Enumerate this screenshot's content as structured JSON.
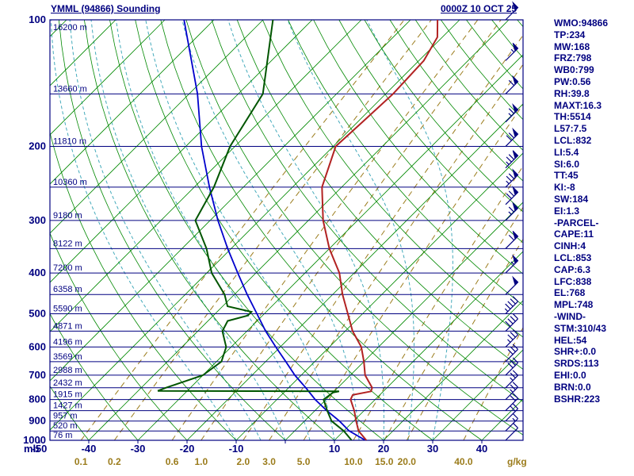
{
  "header": {
    "title": "YMML (94866) Sounding",
    "datetime": "0000Z 10 OCT 25"
  },
  "axes": {
    "pressure_unit": "mb",
    "pressure_ticks": [
      100,
      200,
      300,
      400,
      500,
      600,
      700,
      800,
      900,
      1000
    ],
    "temp_ticks": [
      -50,
      -40,
      -30,
      -20,
      -10,
      10,
      20,
      30,
      40
    ],
    "mixing_unit": "g/kg",
    "mixing_ratio_values": [
      0.1,
      0.2,
      0.6,
      1.0,
      2.0,
      3.0,
      5.0,
      10.0,
      15.0,
      20.0,
      40.0
    ],
    "heights": [
      {
        "p": 100,
        "label": "16200 m"
      },
      {
        "p": 150,
        "label": "13660 m"
      },
      {
        "p": 200,
        "label": "11810 m"
      },
      {
        "p": 250,
        "label": "10360 m"
      },
      {
        "p": 300,
        "label": "9180 m"
      },
      {
        "p": 350,
        "label": "8122 m"
      },
      {
        "p": 400,
        "label": "7200 m"
      },
      {
        "p": 450,
        "label": "6358 m"
      },
      {
        "p": 500,
        "label": "5590 m"
      },
      {
        "p": 550,
        "label": "4871 m"
      },
      {
        "p": 600,
        "label": "4196 m"
      },
      {
        "p": 650,
        "label": "3569 m"
      },
      {
        "p": 700,
        "label": "2988 m"
      },
      {
        "p": 750,
        "label": "2432 m"
      },
      {
        "p": 800,
        "label": "1915 m"
      },
      {
        "p": 850,
        "label": "1427 m"
      },
      {
        "p": 900,
        "label": "957 m"
      },
      {
        "p": 950,
        "label": "520 m"
      },
      {
        "p": 1000,
        "label": "76 m"
      }
    ]
  },
  "stats": [
    "WMO:94866",
    "TP:234",
    "MW:168",
    "FRZ:798",
    "WB0:799",
    "PW:0.56",
    "RH:39.8",
    "MAXT:16.3",
    "TH:5514",
    "L57:7.5",
    "LCL:832",
    "LI:5.4",
    "SI:6.0",
    "TT:45",
    "KI:-8",
    "SW:184",
    "EI:1.3",
    "-PARCEL-",
    "CAPE:11",
    "CINH:4",
    "LCL:853",
    "CAP:6.3",
    "LFC:838",
    "EL:768",
    "MPL:748",
    "-WIND-",
    "STM:310/43",
    "HEL:54",
    "SHR+:0.0",
    "SRDS:113",
    "EHI:0.0",
    "BRN:0.0",
    "BSHR:223"
  ],
  "colors": {
    "frame": "#000080",
    "isotherm": "#008800",
    "dry_adiabat": "#008800",
    "moist_adiabat": "#44aabb",
    "mixing_ratio": "#9b7c1c",
    "temperature": "#b22222",
    "dewpoint": "#005500",
    "parcel": "#0000cc",
    "wind": "#000080"
  },
  "chart_data": {
    "type": "skewt_logp_sounding",
    "y_axis": {
      "unit": "mb",
      "scale": "log",
      "range": [
        100,
        1000
      ]
    },
    "x_axis": {
      "unit": "degC",
      "surface_range": [
        -50,
        40
      ],
      "skew": "45deg"
    },
    "grid": {
      "isotherms": {
        "min": -130,
        "max": 40,
        "step": 10
      },
      "dry_adiabats": {
        "min": -50,
        "max": 190,
        "step": 10
      },
      "moist_adiabats": [
        -10,
        -5,
        0,
        5,
        10,
        15,
        20,
        25,
        30
      ],
      "mixing_ratios": [
        0.1,
        0.2,
        0.6,
        1.0,
        2.0,
        3.0,
        5.0,
        10.0,
        15.0,
        20.0,
        40.0
      ]
    },
    "temperature_trace": {
      "name": "temperature",
      "points": [
        {
          "p": 1000,
          "t": 16.5
        },
        {
          "p": 950,
          "t": 13
        },
        {
          "p": 900,
          "t": 10.5
        },
        {
          "p": 850,
          "t": 8
        },
        {
          "p": 800,
          "t": 5
        },
        {
          "p": 780,
          "t": 4.5
        },
        {
          "p": 765,
          "t": 7.5
        },
        {
          "p": 750,
          "t": 7
        },
        {
          "p": 700,
          "t": 3
        },
        {
          "p": 650,
          "t": 0
        },
        {
          "p": 600,
          "t": -3.5
        },
        {
          "p": 550,
          "t": -8.5
        },
        {
          "p": 500,
          "t": -13
        },
        {
          "p": 450,
          "t": -18
        },
        {
          "p": 400,
          "t": -23
        },
        {
          "p": 350,
          "t": -30
        },
        {
          "p": 300,
          "t": -37
        },
        {
          "p": 250,
          "t": -44
        },
        {
          "p": 200,
          "t": -49.5
        },
        {
          "p": 175,
          "t": -49
        },
        {
          "p": 150,
          "t": -48.5
        },
        {
          "p": 125,
          "t": -49
        },
        {
          "p": 110,
          "t": -51
        },
        {
          "p": 100,
          "t": -54.5
        }
      ]
    },
    "dewpoint_trace": {
      "name": "dewpoint",
      "points": [
        {
          "p": 1000,
          "t": 13.5
        },
        {
          "p": 950,
          "t": 10
        },
        {
          "p": 900,
          "t": 5.5
        },
        {
          "p": 850,
          "t": 2.5
        },
        {
          "p": 800,
          "t": -0.5
        },
        {
          "p": 770,
          "t": 0
        },
        {
          "p": 765,
          "t": 1
        },
        {
          "p": 763,
          "t": -36
        },
        {
          "p": 750,
          "t": -35
        },
        {
          "p": 700,
          "t": -30
        },
        {
          "p": 650,
          "t": -29
        },
        {
          "p": 600,
          "t": -31
        },
        {
          "p": 550,
          "t": -35
        },
        {
          "p": 520,
          "t": -36
        },
        {
          "p": 505,
          "t": -33
        },
        {
          "p": 495,
          "t": -33
        },
        {
          "p": 480,
          "t": -39
        },
        {
          "p": 450,
          "t": -42
        },
        {
          "p": 400,
          "t": -49
        },
        {
          "p": 350,
          "t": -55
        },
        {
          "p": 300,
          "t": -63
        },
        {
          "p": 250,
          "t": -66
        },
        {
          "p": 200,
          "t": -71
        },
        {
          "p": 150,
          "t": -75
        },
        {
          "p": 100,
          "t": -88
        }
      ]
    },
    "parcel_trace": {
      "name": "parcel",
      "points": [
        {
          "p": 1000,
          "t": 16.3
        },
        {
          "p": 950,
          "t": 11.1
        },
        {
          "p": 900,
          "t": 7.1
        },
        {
          "p": 850,
          "t": 2.4
        },
        {
          "p": 800,
          "t": -2.2
        },
        {
          "p": 750,
          "t": -6.5
        },
        {
          "p": 700,
          "t": -11.3
        },
        {
          "p": 650,
          "t": -15.9
        },
        {
          "p": 600,
          "t": -20.9
        },
        {
          "p": 550,
          "t": -26.2
        },
        {
          "p": 500,
          "t": -31.5
        },
        {
          "p": 450,
          "t": -37.4
        },
        {
          "p": 400,
          "t": -43.7
        },
        {
          "p": 350,
          "t": -50.7
        },
        {
          "p": 300,
          "t": -58.4
        },
        {
          "p": 250,
          "t": -66.9
        },
        {
          "p": 200,
          "t": -76.8
        },
        {
          "p": 150,
          "t": -88.3
        },
        {
          "p": 100,
          "t": -106.1
        }
      ]
    },
    "winds": [
      {
        "p": 1000,
        "dir": 45,
        "spd": 10
      },
      {
        "p": 950,
        "dir": 45,
        "spd": 15
      },
      {
        "p": 900,
        "dir": 45,
        "spd": 20
      },
      {
        "p": 850,
        "dir": 45,
        "spd": 20
      },
      {
        "p": 800,
        "dir": 45,
        "spd": 25
      },
      {
        "p": 750,
        "dir": 45,
        "spd": 25
      },
      {
        "p": 700,
        "dir": 45,
        "spd": 30
      },
      {
        "p": 650,
        "dir": 45,
        "spd": 30
      },
      {
        "p": 600,
        "dir": 45,
        "spd": 35
      },
      {
        "p": 550,
        "dir": 45,
        "spd": 40
      },
      {
        "p": 500,
        "dir": 45,
        "spd": 45
      },
      {
        "p": 450,
        "dir": 45,
        "spd": 50
      },
      {
        "p": 400,
        "dir": 45,
        "spd": 55
      },
      {
        "p": 350,
        "dir": 45,
        "spd": 60
      },
      {
        "p": 300,
        "dir": 45,
        "spd": 65
      },
      {
        "p": 275,
        "dir": 45,
        "spd": 70
      },
      {
        "p": 250,
        "dir": 45,
        "spd": 75
      },
      {
        "p": 225,
        "dir": 45,
        "spd": 75
      },
      {
        "p": 200,
        "dir": 45,
        "spd": 70
      },
      {
        "p": 175,
        "dir": 45,
        "spd": 65
      },
      {
        "p": 150,
        "dir": 45,
        "spd": 60
      },
      {
        "p": 125,
        "dir": 45,
        "spd": 55
      },
      {
        "p": 100,
        "dir": 45,
        "spd": 50
      }
    ]
  }
}
